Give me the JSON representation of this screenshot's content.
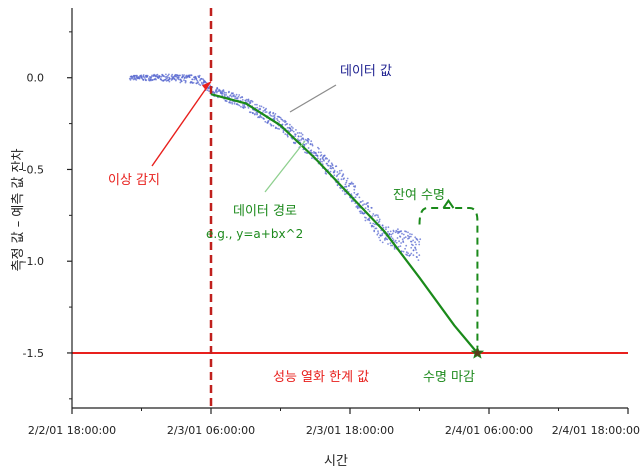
{
  "chart_data": {
    "type": "scatter",
    "xlabel": "시간",
    "ylabel": "측정 값 – 예측 값 잔차",
    "x_tick_labels": [
      "2/2/01 18:00:00",
      "2/3/01 06:00:00",
      "2/3/01 18:00:00",
      "2/4/01 06:00:00",
      "2/4/01 18:00:00"
    ],
    "xlim": [
      "2/2/01 18:00:00",
      "2/4/01 18:00:00"
    ],
    "y_tick_labels": [
      "0.0",
      "-0.5",
      "-1.0",
      "-1.5"
    ],
    "ylim": [
      -1.8,
      0.38
    ],
    "grid": false,
    "series": [
      {
        "role": "scatter",
        "x": [
          "2/2/01 23:00:00",
          "2/3/01 02:00:00",
          "2/3/01 05:00:00",
          "2/3/01 06:00:00",
          "2/3/01 09:00:00",
          "2/3/01 12:00:00",
          "2/3/01 15:00:00",
          "2/3/01 18:00:00",
          "2/3/01 21:00:00",
          "2/4/01 00:00:00"
        ],
        "y": [
          0.0,
          0.0,
          -0.01,
          -0.07,
          -0.14,
          -0.25,
          -0.41,
          -0.61,
          -0.86,
          -0.93
        ]
      },
      {
        "role": "fit_curve",
        "x": [
          "2/3/01 06:00:00",
          "2/3/01 09:00:00",
          "2/3/01 12:00:00",
          "2/3/01 15:00:00",
          "2/3/01 18:00:00",
          "2/3/01 21:00:00",
          "2/4/01 00:00:00",
          "2/4/01 03:00:00",
          "2/4/01 05:00:00"
        ],
        "y": [
          -0.09,
          -0.14,
          -0.26,
          -0.44,
          -0.64,
          -0.84,
          -1.09,
          -1.35,
          -1.5
        ]
      }
    ],
    "threshold_value": -1.5,
    "anomaly_time": "2/3/01 06:00:00",
    "end_of_life_time": "2/4/01 05:00:00",
    "annotations": {
      "anomaly": "이상 감지",
      "data_value": "데이터 값",
      "data_path": "데이터 경로",
      "formula": "e.g., y=a+bx^2",
      "remaining_life": "잔여 수명",
      "threshold": "성능 열화 한계 값",
      "end_of_life": "수명 마감"
    },
    "colors": {
      "scatter": "#5a6ad0",
      "fit_curve": "#1a8a1a",
      "threshold": "#e8201d",
      "anomaly_line": "#c0201d",
      "end_marker": "#5a3a1a"
    }
  }
}
